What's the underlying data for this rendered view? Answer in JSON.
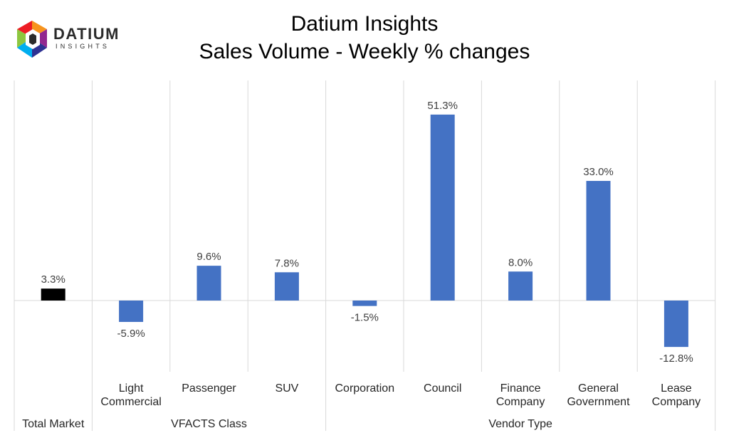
{
  "header": {
    "logo": {
      "name": "DATIUM",
      "sub": "INSIGHTS"
    },
    "title": "Datium Insights",
    "subtitle": "Sales Volume - Weekly % changes"
  },
  "chart_data": {
    "type": "bar",
    "title": "Sales Volume - Weekly % changes",
    "categories": [
      "Total Market",
      "Light Commercial",
      "Passenger",
      "SUV",
      "Corporation",
      "Council",
      "Finance Company",
      "General Government",
      "Lease Company"
    ],
    "category_lines": [
      [
        "Total Market"
      ],
      [
        "Light",
        "Commercial"
      ],
      [
        "Passenger"
      ],
      [
        "SUV"
      ],
      [
        "Corporation"
      ],
      [
        "Council"
      ],
      [
        "Finance",
        "Company"
      ],
      [
        "General",
        "Government"
      ],
      [
        "Lease",
        "Company"
      ]
    ],
    "values": [
      3.3,
      -5.9,
      9.6,
      7.8,
      -1.5,
      51.3,
      8.0,
      33.0,
      -12.8
    ],
    "value_labels": [
      "3.3%",
      "-5.9%",
      "9.6%",
      "7.8%",
      "-1.5%",
      "51.3%",
      "8.0%",
      "33.0%",
      "-12.8%"
    ],
    "bar_colors": [
      "#000000",
      "#4472c4",
      "#4472c4",
      "#4472c4",
      "#4472c4",
      "#4472c4",
      "#4472c4",
      "#4472c4",
      "#4472c4"
    ],
    "groups": [
      {
        "label": "",
        "start": 0,
        "end": 0
      },
      {
        "label": "VFACTS Class",
        "start": 1,
        "end": 3
      },
      {
        "label": "Vendor Type",
        "start": 4,
        "end": 8
      }
    ],
    "xlabel": "",
    "ylabel": "",
    "ylim": [
      -20,
      60
    ],
    "grid": false,
    "legend": "none"
  }
}
